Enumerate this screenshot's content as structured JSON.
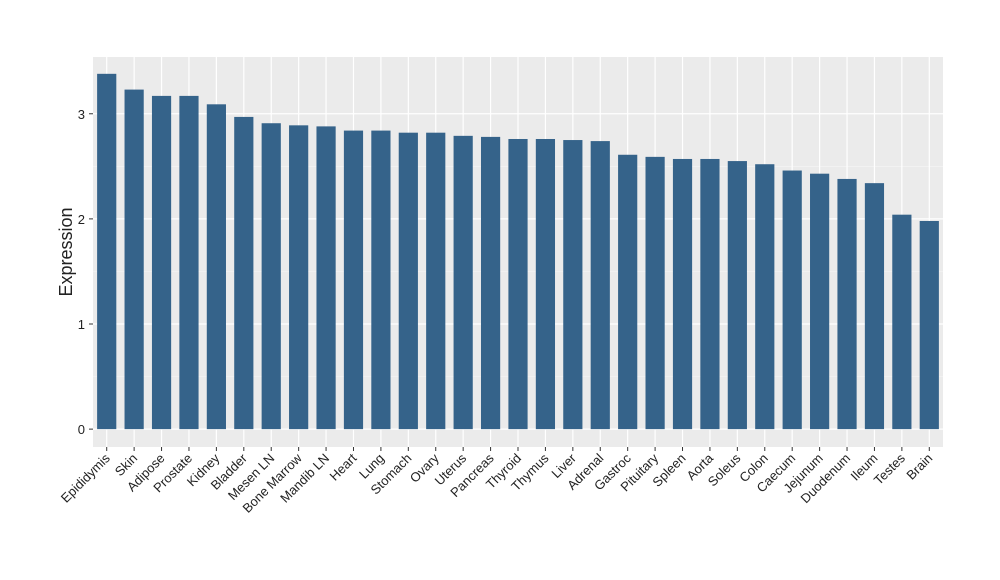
{
  "chart_data": {
    "type": "bar",
    "y_label": "Expression",
    "categories": [
      "Epididymis",
      "Skin",
      "Adipose",
      "Prostate",
      "Kidney",
      "Bladder",
      "Mesen LN",
      "Bone Marrow",
      "Mandib LN",
      "Heart",
      "Lung",
      "Stomach",
      "Ovary",
      "Uterus",
      "Pancreas",
      "Thyroid",
      "Thymus",
      "Liver",
      "Adrenal",
      "Gastroc",
      "Pituitary",
      "Spleen",
      "Aorta",
      "Soleus",
      "Colon",
      "Caecum",
      "Jejunum",
      "Duodenum",
      "Ileum",
      "Testes",
      "Brain"
    ],
    "values": [
      3.38,
      3.23,
      3.17,
      3.17,
      3.09,
      2.97,
      2.91,
      2.89,
      2.88,
      2.84,
      2.84,
      2.82,
      2.82,
      2.79,
      2.78,
      2.76,
      2.76,
      2.75,
      2.74,
      2.61,
      2.59,
      2.57,
      2.57,
      2.55,
      2.52,
      2.46,
      2.43,
      2.38,
      2.34,
      2.04,
      1.98
    ],
    "color": "#35638a",
    "ylim": [
      -0.17,
      3.54
    ],
    "yticks": [
      0,
      1,
      2,
      3
    ],
    "grid": true
  }
}
